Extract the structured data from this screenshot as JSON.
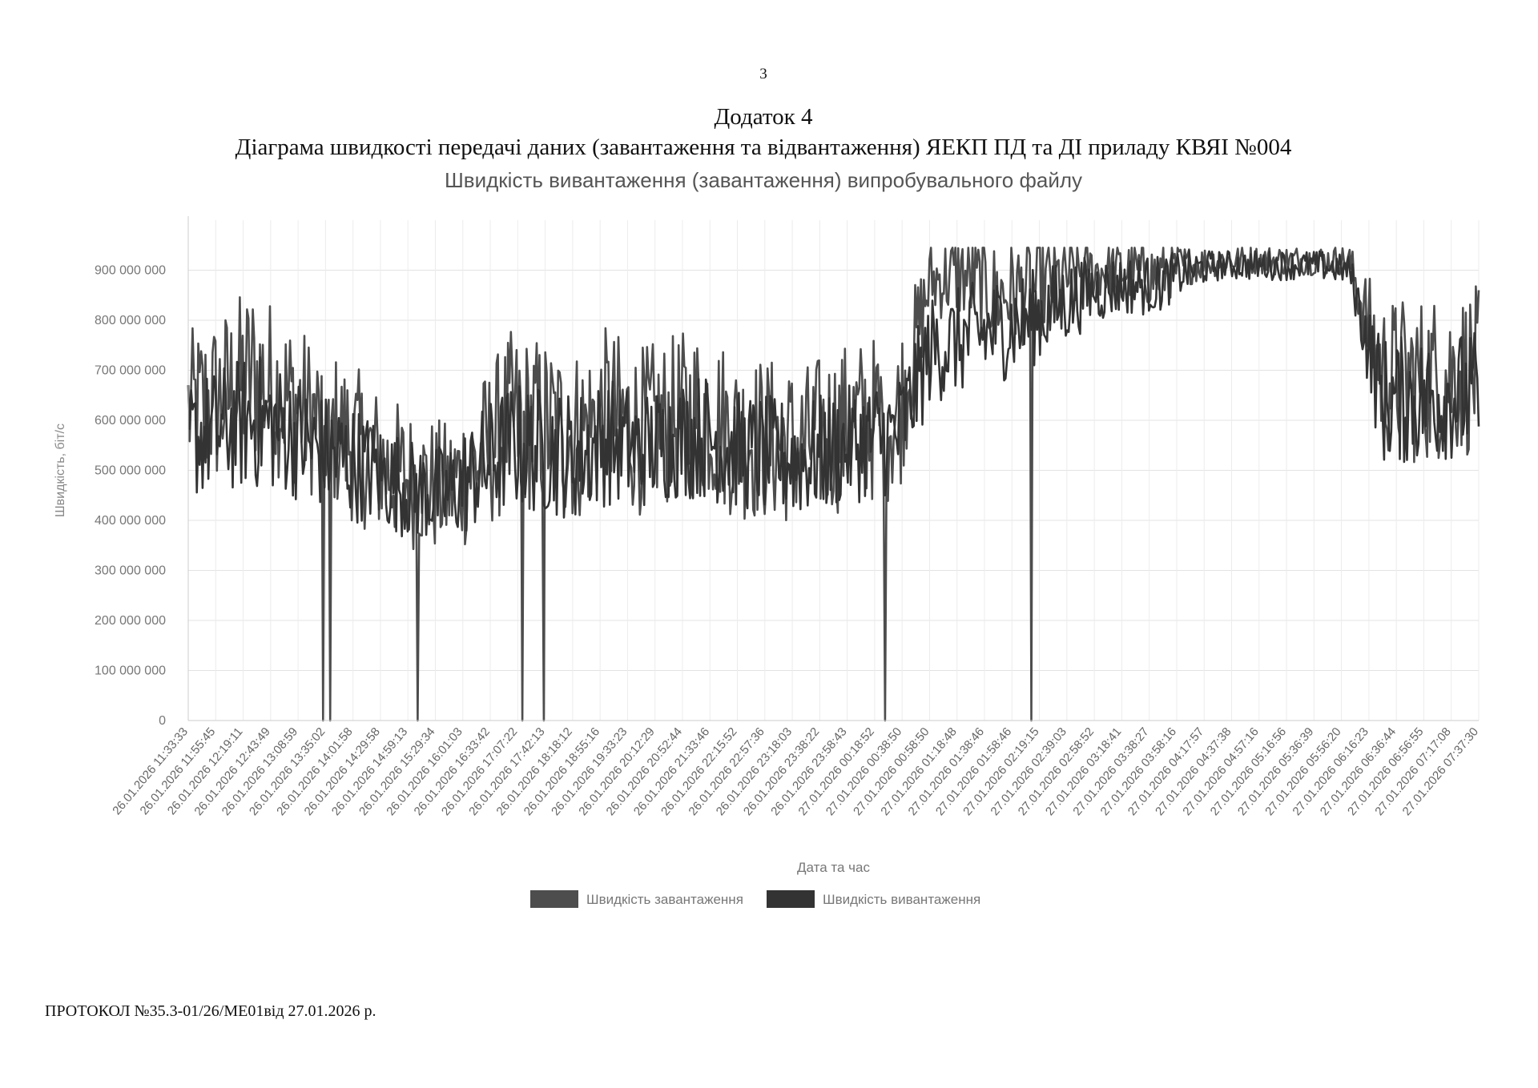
{
  "page_number": "3",
  "appendix_title": "Додаток 4",
  "appendix_subtitle": "Діаграма швидкості передачі даних (завантаження та відвантаження) ЯЕКП ПД та ДІ приладу КВЯІ №004",
  "footer": "ПРОТОКОЛ №35.3-01/26/МЕ01від 27.01.2026 р.",
  "chart_data": {
    "type": "line",
    "title": "Швидкість вивантаження (завантаження) випробувального файлу",
    "xlabel": "Дата та час",
    "ylabel": "Швидкість, біт/с",
    "ylim": [
      0,
      1000000000
    ],
    "y_ticks": [
      0,
      100000000,
      200000000,
      300000000,
      400000000,
      500000000,
      600000000,
      700000000,
      800000000,
      900000000
    ],
    "y_tick_labels": [
      "0",
      "100 000 000",
      "200 000 000",
      "300 000 000",
      "400 000 000",
      "500 000 000",
      "600 000 000",
      "700 000 000",
      "800 000 000",
      "900 000 000"
    ],
    "x_tick_labels": [
      "26.01.2026 11:33:33",
      "26.01.2026 11:55:45",
      "26.01.2026 12:19:11",
      "26.01.2026 12:43:49",
      "26.01.2026 13:08:59",
      "26.01.2026 13:35:02",
      "26.01.2026 14:01:58",
      "26.01.2026 14:29:58",
      "26.01.2026 14:59:13",
      "26.01.2026 15:29:34",
      "26.01.2026 16:01:03",
      "26.01.2026 16:33:42",
      "26.01.2026 17:07:22",
      "26.01.2026 17:42:13",
      "26.01.2026 18:18:12",
      "26.01.2026 18:55:16",
      "26.01.2026 19:33:23",
      "26.01.2026 20:12:29",
      "26.01.2026 20:52:44",
      "26.01.2026 21:33:46",
      "26.01.2026 22:15:52",
      "26.01.2026 22:57:36",
      "26.01.2026 23:18:03",
      "26.01.2026 23:38:22",
      "26.01.2026 23:58:43",
      "27.01.2026 00:18:52",
      "27.01.2026 00:38:50",
      "27.01.2026 00:58:50",
      "27.01.2026 01:18:48",
      "27.01.2026 01:38:46",
      "27.01.2026 01:58:46",
      "27.01.2026 02:19:15",
      "27.01.2026 02:39:03",
      "27.01.2026 02:58:52",
      "27.01.2026 03:18:41",
      "27.01.2026 03:38:27",
      "27.01.2026 03:58:16",
      "27.01.2026 04:17:57",
      "27.01.2026 04:37:38",
      "27.01.2026 04:57:16",
      "27.01.2026 05:16:56",
      "27.01.2026 05:36:39",
      "27.01.2026 05:56:20",
      "27.01.2026 06:16:23",
      "27.01.2026 06:36:44",
      "27.01.2026 06:56:55",
      "27.01.2026 07:17:08",
      "27.01.2026 07:37:30"
    ],
    "grid": true,
    "legend_position": "bottom",
    "series": [
      {
        "name": "Швидкість завантаження",
        "color": "#4d4d4d",
        "y_mean": [
          620000000,
          640000000,
          690000000,
          650000000,
          600000000,
          560000000,
          510000000,
          480000000,
          460000000,
          520000000,
          600000000,
          590000000,
          570000000,
          610000000,
          580000000,
          600000000,
          620000000,
          570000000,
          560000000,
          550000000,
          580000000,
          600000000,
          610000000,
          880000000,
          890000000,
          850000000,
          860000000,
          880000000,
          900000000,
          900000000,
          890000000,
          910000000,
          920000000,
          920000000,
          920000000,
          920000000,
          920000000,
          690000000,
          680000000,
          690000000,
          700000000
        ],
        "y_spread": [
          160000000,
          180000000,
          190000000,
          170000000,
          160000000,
          160000000,
          150000000,
          140000000,
          140000000,
          160000000,
          180000000,
          180000000,
          180000000,
          180000000,
          170000000,
          170000000,
          180000000,
          170000000,
          170000000,
          160000000,
          170000000,
          170000000,
          170000000,
          80000000,
          90000000,
          110000000,
          110000000,
          90000000,
          60000000,
          60000000,
          70000000,
          40000000,
          30000000,
          30000000,
          30000000,
          30000000,
          30000000,
          160000000,
          170000000,
          170000000,
          170000000
        ],
        "dips_at_x": [
          0.104,
          0.11,
          0.178,
          0.259,
          0.276,
          0.54,
          0.653
        ],
        "dips_y": [
          0,
          0,
          0,
          0,
          0,
          0,
          0
        ]
      },
      {
        "name": "Швидкість вивантаження",
        "color": "#333333",
        "y_mean": [
          560000000,
          580000000,
          600000000,
          580000000,
          540000000,
          520000000,
          490000000,
          460000000,
          450000000,
          500000000,
          550000000,
          540000000,
          530000000,
          560000000,
          540000000,
          560000000,
          570000000,
          540000000,
          530000000,
          520000000,
          540000000,
          560000000,
          570000000,
          740000000,
          760000000,
          780000000,
          800000000,
          830000000,
          860000000,
          870000000,
          870000000,
          900000000,
          910000000,
          910000000,
          910000000,
          910000000,
          900000000,
          640000000,
          640000000,
          650000000,
          650000000
        ],
        "y_spread": [
          120000000,
          130000000,
          140000000,
          130000000,
          120000000,
          120000000,
          110000000,
          100000000,
          100000000,
          120000000,
          130000000,
          130000000,
          130000000,
          130000000,
          120000000,
          120000000,
          130000000,
          120000000,
          120000000,
          120000000,
          120000000,
          120000000,
          120000000,
          110000000,
          110000000,
          110000000,
          100000000,
          90000000,
          70000000,
          60000000,
          60000000,
          40000000,
          30000000,
          30000000,
          30000000,
          30000000,
          30000000,
          130000000,
          130000000,
          130000000,
          130000000
        ],
        "dips_at_x": [],
        "dips_y": []
      }
    ]
  }
}
